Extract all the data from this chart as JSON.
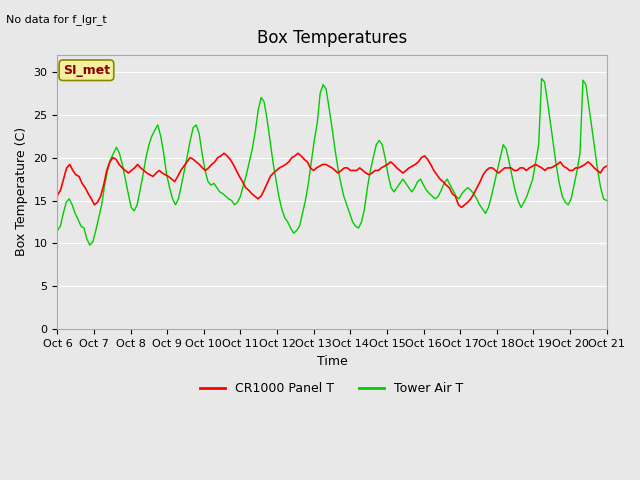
{
  "title": "Box Temperatures",
  "ylabel": "Box Temperature (C)",
  "xlabel": "Time",
  "top_left_text": "No data for f_lgr_t",
  "annotation_text": "SI_met",
  "ylim": [
    0,
    32
  ],
  "yticks": [
    0,
    5,
    10,
    15,
    20,
    25,
    30
  ],
  "x_labels": [
    "Oct 6",
    "Oct 7",
    "Oct 8",
    "Oct 9",
    "Oct 10",
    "Oct 11",
    "Oct 12",
    "Oct 13",
    "Oct 14",
    "Oct 15",
    "Oct 16",
    "Oct 17",
    "Oct 18",
    "Oct 19",
    "Oct 20",
    "Oct 21"
  ],
  "legend_entries": [
    "CR1000 Panel T",
    "Tower Air T"
  ],
  "line_colors": [
    "#ff0000",
    "#00cc00"
  ],
  "background_color": "#e8e8e8",
  "plot_bg_color": "#e8e8e8",
  "grid_color": "#ffffff",
  "cr1000_panel_t": [
    15.6,
    16.2,
    17.5,
    18.8,
    19.2,
    18.5,
    18.0,
    17.8,
    17.0,
    16.5,
    15.8,
    15.2,
    14.5,
    14.8,
    15.5,
    16.8,
    18.5,
    19.5,
    20.0,
    19.8,
    19.2,
    18.8,
    18.5,
    18.2,
    18.5,
    18.8,
    19.2,
    18.8,
    18.5,
    18.2,
    18.0,
    17.8,
    18.2,
    18.5,
    18.2,
    18.0,
    17.8,
    17.5,
    17.2,
    17.8,
    18.5,
    19.0,
    19.5,
    20.0,
    19.8,
    19.5,
    19.2,
    18.8,
    18.5,
    18.8,
    19.2,
    19.5,
    20.0,
    20.2,
    20.5,
    20.2,
    19.8,
    19.2,
    18.5,
    17.8,
    17.2,
    16.5,
    16.2,
    15.8,
    15.5,
    15.2,
    15.5,
    16.2,
    17.0,
    17.8,
    18.2,
    18.5,
    18.8,
    19.0,
    19.2,
    19.5,
    20.0,
    20.2,
    20.5,
    20.2,
    19.8,
    19.5,
    18.8,
    18.5,
    18.8,
    19.0,
    19.2,
    19.2,
    19.0,
    18.8,
    18.5,
    18.2,
    18.5,
    18.8,
    18.8,
    18.5,
    18.5,
    18.5,
    18.8,
    18.5,
    18.2,
    18.0,
    18.2,
    18.5,
    18.5,
    18.8,
    19.0,
    19.2,
    19.5,
    19.2,
    18.8,
    18.5,
    18.2,
    18.5,
    18.8,
    19.0,
    19.2,
    19.5,
    20.0,
    20.2,
    19.8,
    19.2,
    18.5,
    18.0,
    17.5,
    17.2,
    16.8,
    16.5,
    15.8,
    15.5,
    14.5,
    14.2,
    14.5,
    14.8,
    15.2,
    15.8,
    16.5,
    17.2,
    18.0,
    18.5,
    18.8,
    18.8,
    18.5,
    18.2,
    18.5,
    18.8,
    18.8,
    18.8,
    18.5,
    18.5,
    18.8,
    18.8,
    18.5,
    18.8,
    19.0,
    19.2,
    19.0,
    18.8,
    18.5,
    18.8,
    18.8,
    19.0,
    19.2,
    19.5,
    19.0,
    18.8,
    18.5,
    18.5,
    18.8,
    18.8,
    19.0,
    19.2,
    19.5,
    19.2,
    18.8,
    18.5,
    18.2,
    18.8,
    19.0
  ],
  "tower_air_t": [
    11.5,
    12.0,
    13.5,
    14.8,
    15.2,
    14.5,
    13.5,
    12.8,
    12.0,
    11.8,
    10.5,
    9.8,
    10.2,
    11.5,
    13.0,
    14.5,
    16.8,
    18.5,
    19.8,
    20.5,
    21.2,
    20.5,
    19.2,
    17.5,
    15.8,
    14.2,
    13.8,
    14.5,
    16.2,
    18.0,
    20.0,
    21.5,
    22.5,
    23.2,
    23.8,
    22.5,
    20.5,
    18.0,
    16.5,
    15.2,
    14.5,
    15.2,
    16.8,
    18.5,
    20.2,
    22.0,
    23.5,
    23.8,
    22.8,
    20.5,
    18.5,
    17.2,
    16.8,
    17.0,
    16.5,
    16.0,
    15.8,
    15.5,
    15.2,
    15.0,
    14.5,
    14.8,
    15.5,
    16.8,
    18.0,
    19.5,
    21.0,
    23.0,
    25.5,
    27.0,
    26.5,
    24.5,
    22.0,
    19.5,
    17.5,
    15.5,
    14.0,
    13.0,
    12.5,
    11.8,
    11.2,
    11.5,
    12.0,
    13.5,
    15.0,
    17.0,
    19.5,
    22.0,
    24.0,
    27.5,
    28.5,
    28.0,
    25.8,
    23.5,
    21.0,
    18.8,
    17.0,
    15.5,
    14.5,
    13.5,
    12.5,
    12.0,
    11.8,
    12.5,
    14.0,
    16.5,
    18.5,
    20.0,
    21.5,
    22.0,
    21.5,
    20.0,
    18.0,
    16.5,
    16.0,
    16.5,
    17.0,
    17.5,
    17.0,
    16.5,
    16.0,
    16.5,
    17.2,
    17.5,
    16.8,
    16.2,
    15.8,
    15.5,
    15.2,
    15.5,
    16.2,
    17.0,
    17.5,
    16.8,
    16.2,
    15.5,
    15.2,
    15.8,
    16.2,
    16.5,
    16.2,
    15.8,
    15.2,
    14.5,
    14.0,
    13.5,
    14.2,
    15.5,
    17.0,
    18.5,
    20.0,
    21.5,
    21.0,
    19.5,
    17.8,
    16.2,
    15.0,
    14.2,
    14.8,
    15.5,
    16.5,
    17.5,
    19.5,
    21.5,
    29.2,
    28.8,
    26.5,
    24.0,
    21.5,
    19.0,
    17.0,
    15.5,
    14.8,
    14.5,
    15.2,
    16.8,
    18.5,
    20.5,
    29.0,
    28.5,
    26.0,
    23.5,
    21.0,
    18.5,
    16.5,
    15.2,
    15.0
  ]
}
